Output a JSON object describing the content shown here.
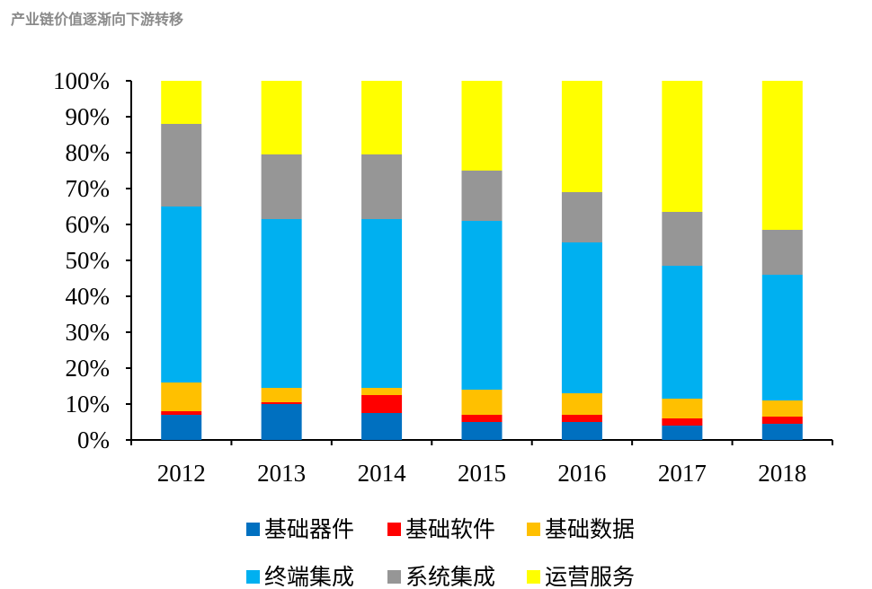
{
  "header": {
    "title": "产业链价值逐渐向下游转移"
  },
  "chart_data": {
    "type": "bar",
    "stacked": true,
    "categories": [
      "2012",
      "2013",
      "2014",
      "2015",
      "2016",
      "2017",
      "2018"
    ],
    "ylim": [
      0,
      100
    ],
    "yticks": [
      "0%",
      "10%",
      "20%",
      "30%",
      "40%",
      "50%",
      "60%",
      "70%",
      "80%",
      "90%",
      "100%"
    ],
    "series": [
      {
        "name": "基础器件",
        "color": "#0070C0",
        "values": [
          7,
          10,
          7.5,
          5,
          5,
          4,
          4.5
        ]
      },
      {
        "name": "基础软件",
        "color": "#FF0000",
        "values": [
          1,
          0.5,
          5,
          2,
          2,
          2,
          2
        ]
      },
      {
        "name": "基础数据",
        "color": "#FFC000",
        "values": [
          8,
          4,
          2,
          7,
          6,
          5.5,
          4.5
        ]
      },
      {
        "name": "终端集成",
        "color": "#00B0F0",
        "values": [
          49,
          47,
          47,
          47,
          42,
          37,
          35
        ]
      },
      {
        "name": "系统集成",
        "color": "#969696",
        "values": [
          23,
          18,
          18,
          14,
          14,
          15,
          12.5
        ]
      },
      {
        "name": "运营服务",
        "color": "#FFFF00",
        "values": [
          12,
          20.5,
          20.5,
          25,
          31,
          36.5,
          41.5
        ]
      }
    ],
    "legend_position": "bottom"
  }
}
